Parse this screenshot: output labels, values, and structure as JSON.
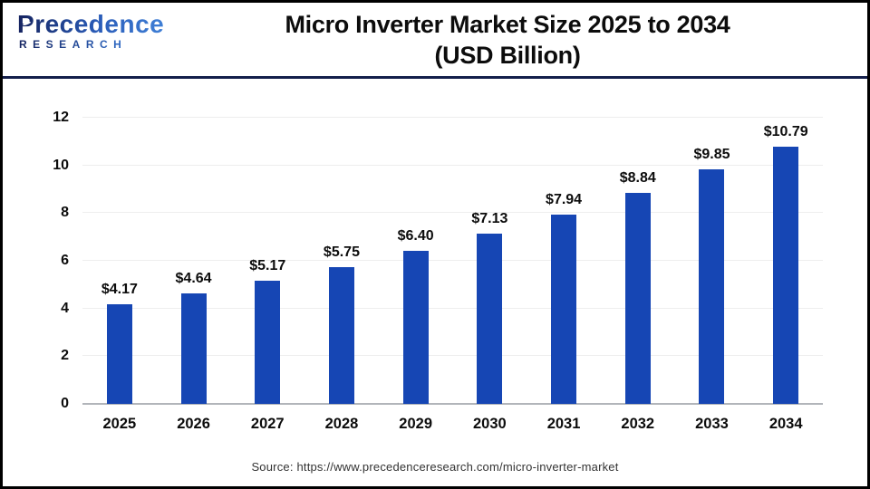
{
  "header": {
    "logo": {
      "brand_p": "P",
      "brand_rest": "recedence",
      "brand_bottom": "RESEARCH"
    },
    "title_line1": "Micro Inverter Market Size 2025 to 2034",
    "title_line2": "(USD Billion)"
  },
  "chart_data": {
    "type": "bar",
    "title": "Micro Inverter Market Size 2025 to 2034 (USD Billion)",
    "categories": [
      "2025",
      "2026",
      "2027",
      "2028",
      "2029",
      "2030",
      "2031",
      "2032",
      "2033",
      "2034"
    ],
    "values": [
      4.17,
      4.64,
      5.17,
      5.75,
      6.4,
      7.13,
      7.94,
      8.84,
      9.85,
      10.79
    ],
    "value_labels": [
      "$4.17",
      "$4.64",
      "$5.17",
      "$5.75",
      "$6.40",
      "$7.13",
      "$7.94",
      "$8.84",
      "$9.85",
      "$10.79"
    ],
    "unit": "USD Billion",
    "xlabel": "",
    "ylabel": "",
    "ylim": [
      0,
      12
    ],
    "yticks": [
      0,
      2,
      4,
      6,
      8,
      10,
      12
    ],
    "grid": true,
    "legend_position": "none",
    "bar_color": "#1646b4"
  },
  "footer": {
    "source": "Source: https://www.precedenceresearch.com/micro-inverter-market"
  },
  "colors": {
    "bar": "#1646b4",
    "divider": "#141f4b",
    "gridline": "#eeeeee",
    "axis_line": "#b2b5ba",
    "logo_navy": "#15235f",
    "logo_blue": "#3f7fd6",
    "text": "#0c0c0c",
    "source_text": "#333333"
  }
}
